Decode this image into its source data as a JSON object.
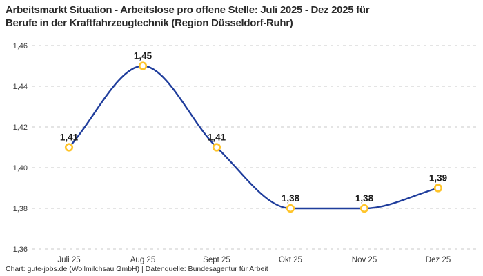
{
  "header": {
    "title_line1": "Arbeitsmarkt Situation - Arbeitslose pro offene Stelle: Juli 2025 - Dez 2025 für",
    "title_line2": "Berufe in der Kraftfahrzeugtechnik (Region Düsseldorf-Ruhr)"
  },
  "footer": {
    "credit": "Chart: gute-jobs.de (Wollmilchsau GmbH) | Datenquelle: Bundesagentur für Arbeit"
  },
  "chart_data": {
    "type": "line",
    "title": "Arbeitsmarkt Situation - Arbeitslose pro offene Stelle: Juli 2025 - Dez 2025 für Berufe in der Kraftfahrzeugtechnik (Region Düsseldorf-Ruhr)",
    "categories": [
      "Juli 25",
      "Aug 25",
      "Sept 25",
      "Okt 25",
      "Nov 25",
      "Dez 25"
    ],
    "values": [
      1.41,
      1.45,
      1.41,
      1.38,
      1.38,
      1.39
    ],
    "value_labels": [
      "1,41",
      "1,45",
      "1,41",
      "1,38",
      "1,38",
      "1,39"
    ],
    "y_tick_values": [
      1.46,
      1.44,
      1.42,
      1.4,
      1.38,
      1.36
    ],
    "y_tick_labels": [
      "1,46",
      "1,44",
      "1,42",
      "1,40",
      "1,38",
      "1,36"
    ],
    "ylim": [
      1.36,
      1.46
    ],
    "xlabel": "",
    "ylabel": "",
    "legend": "none",
    "grid": "horizontal-dashed",
    "curve": "smooth-monotone",
    "colors": {
      "line": "#1f3d9c",
      "marker_ring": "#ffc429",
      "marker_fill": "#ffffff",
      "grid": "#c9c9c9",
      "tick_text": "#3b3b3b",
      "value_text": "#1c1c1c"
    }
  }
}
